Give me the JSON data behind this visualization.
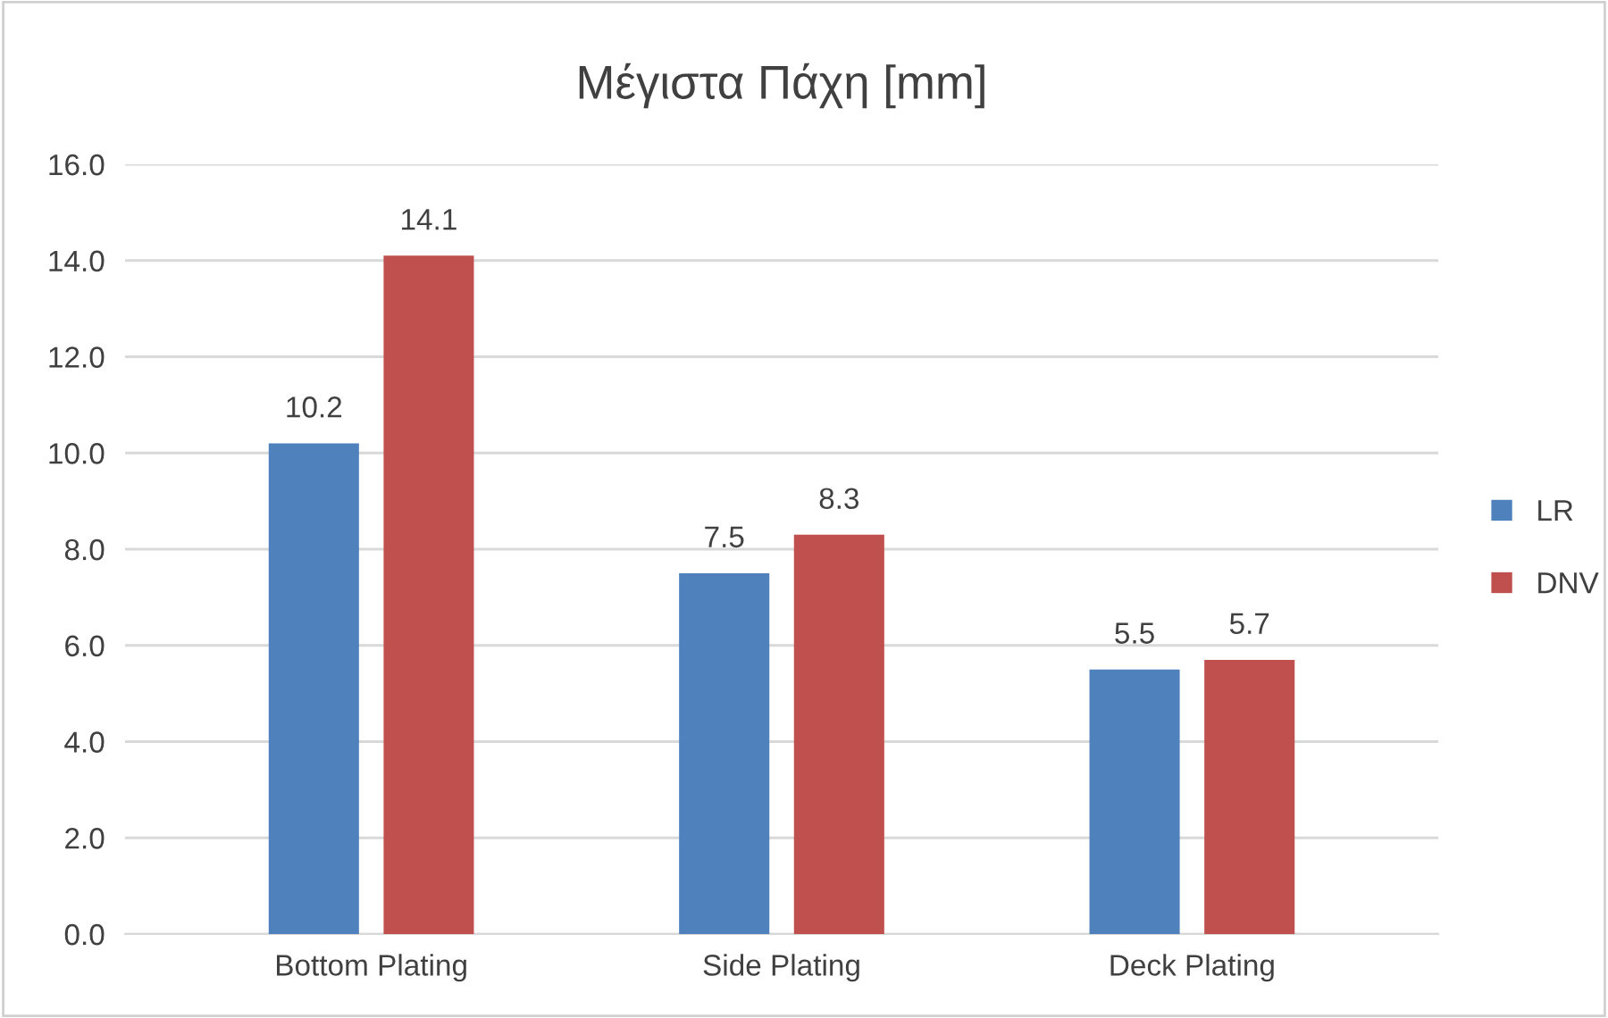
{
  "chart_data": {
    "type": "bar",
    "title": "Μέγιστα Πάχη [mm]",
    "categories": [
      "Bottom Plating",
      "Side Plating",
      "Deck Plating"
    ],
    "series": [
      {
        "name": "LR",
        "color": "#4f81bd",
        "values": [
          10.2,
          7.5,
          5.5
        ]
      },
      {
        "name": "DNV",
        "color": "#c0504d",
        "values": [
          14.1,
          8.3,
          5.7
        ]
      }
    ],
    "ylim": [
      0,
      16
    ],
    "yticks": [
      {
        "value": 0,
        "label": "0.0"
      },
      {
        "value": 2,
        "label": "2.0"
      },
      {
        "value": 4,
        "label": "4.0"
      },
      {
        "value": 6,
        "label": "6.0"
      },
      {
        "value": 8,
        "label": "8.0"
      },
      {
        "value": 10,
        "label": "10.0"
      },
      {
        "value": 12,
        "label": "12.0"
      },
      {
        "value": 14,
        "label": "14.0"
      },
      {
        "value": 16,
        "label": "16.0"
      }
    ],
    "grid": "y",
    "legend": "right",
    "data_labels": true
  }
}
